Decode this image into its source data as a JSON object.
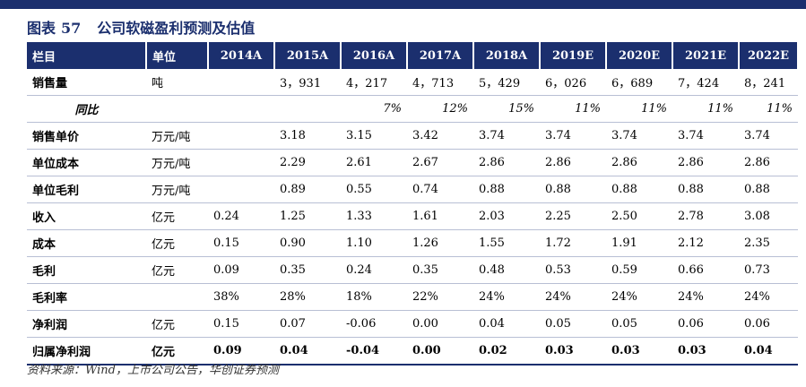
{
  "figure": {
    "label": "图表",
    "number": "57",
    "title": "公司软磁盈利预测及估值"
  },
  "table": {
    "headers": [
      "栏目",
      "单位",
      "2014A",
      "2015A",
      "2016A",
      "2017A",
      "2018A",
      "2019E",
      "2020E",
      "2021E",
      "2022E"
    ],
    "rows": [
      {
        "label": "销售量",
        "unit": "吨",
        "values": [
          "",
          "3，931",
          "4，217",
          "4，713",
          "5，429",
          "6，026",
          "6，689",
          "7，424",
          "8，241"
        ]
      },
      {
        "label": "同比",
        "unit": "",
        "values": [
          "",
          "",
          "7%",
          "12%",
          "15%",
          "11%",
          "11%",
          "11%",
          "11%"
        ],
        "style": "yoy"
      },
      {
        "label": "销售单价",
        "unit": "万元/吨",
        "values": [
          "",
          "3.18",
          "3.15",
          "3.42",
          "3.74",
          "3.74",
          "3.74",
          "3.74",
          "3.74"
        ]
      },
      {
        "label": "单位成本",
        "unit": "万元/吨",
        "values": [
          "",
          "2.29",
          "2.61",
          "2.67",
          "2.86",
          "2.86",
          "2.86",
          "2.86",
          "2.86"
        ]
      },
      {
        "label": "单位毛利",
        "unit": "万元/吨",
        "values": [
          "",
          "0.89",
          "0.55",
          "0.74",
          "0.88",
          "0.88",
          "0.88",
          "0.88",
          "0.88"
        ]
      },
      {
        "label": "收入",
        "unit": "亿元",
        "values": [
          "0.24",
          "1.25",
          "1.33",
          "1.61",
          "2.03",
          "2.25",
          "2.50",
          "2.78",
          "3.08"
        ]
      },
      {
        "label": "成本",
        "unit": "亿元",
        "values": [
          "0.15",
          "0.90",
          "1.10",
          "1.26",
          "1.55",
          "1.72",
          "1.91",
          "2.12",
          "2.35"
        ]
      },
      {
        "label": "毛利",
        "unit": "亿元",
        "values": [
          "0.09",
          "0.35",
          "0.24",
          "0.35",
          "0.48",
          "0.53",
          "0.59",
          "0.66",
          "0.73"
        ]
      },
      {
        "label": "毛利率",
        "unit": "",
        "values": [
          "38%",
          "28%",
          "18%",
          "22%",
          "24%",
          "24%",
          "24%",
          "24%",
          "24%"
        ]
      },
      {
        "label": "净利润",
        "unit": "亿元",
        "values": [
          "0.15",
          "0.07",
          "-0.06",
          "0.00",
          "0.04",
          "0.05",
          "0.05",
          "0.06",
          "0.06"
        ]
      },
      {
        "label": "归属净利润",
        "unit": "亿元",
        "values": [
          "0.09",
          "0.04",
          "-0.04",
          "0.00",
          "0.02",
          "0.03",
          "0.03",
          "0.03",
          "0.04"
        ]
      }
    ]
  },
  "source": "资料来源：Wind，上市公司公告，华创证券预测",
  "colors": {
    "header_bg": "#1b2f6e",
    "row_rule": "#b8bfd4"
  }
}
